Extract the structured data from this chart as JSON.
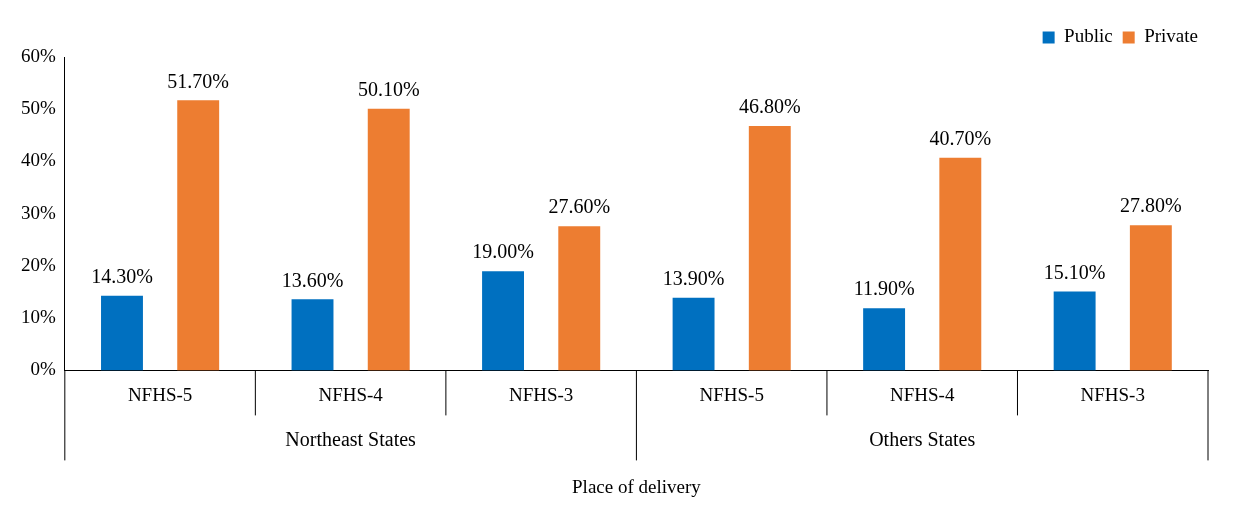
{
  "chart_data": {
    "type": "bar",
    "xlabel": "Place of delivery",
    "categories": [
      "NFHS-5",
      "NFHS-4",
      "NFHS-3",
      "NFHS-5",
      "NFHS-4",
      "NFHS-3"
    ],
    "annotations": [
      "Northeast States",
      "Others States"
    ],
    "series": [
      {
        "name": "Public",
        "color": "#0070c0",
        "values": [
          14.3,
          13.6,
          19.0,
          13.9,
          11.9,
          15.1
        ],
        "value_labels": [
          "14.30%",
          "13.60%",
          "19.00%",
          "13.90%",
          "11.90%",
          "15.10%"
        ]
      },
      {
        "name": "Private",
        "color": "#ed7d31",
        "values": [
          51.7,
          50.1,
          27.6,
          46.8,
          40.7,
          27.8
        ],
        "value_labels": [
          "51.70%",
          "50.10%",
          "27.60%",
          "46.80%",
          "40.70%",
          "27.80%"
        ]
      }
    ],
    "ylim": [
      0,
      60
    ],
    "yticks": [
      {
        "value": 0,
        "label": "0%"
      },
      {
        "value": 10,
        "label": "10%"
      },
      {
        "value": 20,
        "label": "20%"
      },
      {
        "value": 30,
        "label": "30%"
      },
      {
        "value": 40,
        "label": "40%"
      },
      {
        "value": 50,
        "label": "50%"
      },
      {
        "value": 60,
        "label": "60%"
      }
    ],
    "grid": false,
    "legend": "top right"
  }
}
